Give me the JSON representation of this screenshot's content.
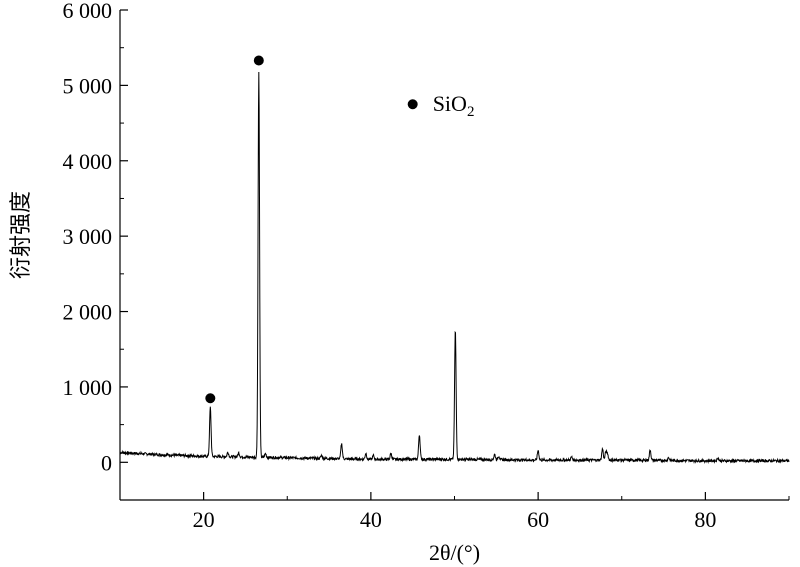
{
  "chart_data": {
    "type": "line",
    "xlabel": "2θ/(°)",
    "ylabel": "衍射强度",
    "xlim": [
      10,
      90
    ],
    "ylim": [
      -500,
      6000
    ],
    "xticks": [
      20,
      40,
      60,
      80
    ],
    "xtick_labels": [
      "20",
      "40",
      "60",
      "80"
    ],
    "yticks": [
      0,
      1000,
      2000,
      3000,
      4000,
      5000,
      6000
    ],
    "ytick_labels": [
      "0",
      "1 000",
      "2 000",
      "3 000",
      "4 000",
      "5 000",
      "6 000"
    ],
    "legend": {
      "marker": "circle",
      "label": "SiO",
      "subscript": "2",
      "position": "top-right"
    },
    "baseline": [
      [
        10,
        130
      ],
      [
        15,
        100
      ],
      [
        20,
        80
      ],
      [
        25,
        70
      ],
      [
        30,
        60
      ],
      [
        35,
        50
      ],
      [
        40,
        40
      ],
      [
        50,
        40
      ],
      [
        60,
        30
      ],
      [
        70,
        30
      ],
      [
        80,
        20
      ],
      [
        90,
        20
      ]
    ],
    "peaks": [
      {
        "x": 20.8,
        "y": 650
      },
      {
        "x": 22.9,
        "y": 60
      },
      {
        "x": 24.2,
        "y": 55
      },
      {
        "x": 26.6,
        "y": 5100
      },
      {
        "x": 27.4,
        "y": 50
      },
      {
        "x": 34.1,
        "y": 40
      },
      {
        "x": 36.5,
        "y": 200
      },
      {
        "x": 39.4,
        "y": 80
      },
      {
        "x": 40.3,
        "y": 50
      },
      {
        "x": 42.4,
        "y": 80
      },
      {
        "x": 45.8,
        "y": 330
      },
      {
        "x": 50.1,
        "y": 1720
      },
      {
        "x": 54.8,
        "y": 70
      },
      {
        "x": 55.3,
        "y": 50
      },
      {
        "x": 60.0,
        "y": 130
      },
      {
        "x": 64.0,
        "y": 40
      },
      {
        "x": 67.7,
        "y": 150
      },
      {
        "x": 68.1,
        "y": 110
      },
      {
        "x": 68.3,
        "y": 80
      },
      {
        "x": 73.4,
        "y": 140
      },
      {
        "x": 75.6,
        "y": 40
      },
      {
        "x": 81.5,
        "y": 40
      }
    ],
    "markers": [
      {
        "x": 20.8,
        "y": 850,
        "label": "SiO2"
      },
      {
        "x": 26.6,
        "y": 5330,
        "label": "SiO2"
      }
    ],
    "grid": false
  }
}
